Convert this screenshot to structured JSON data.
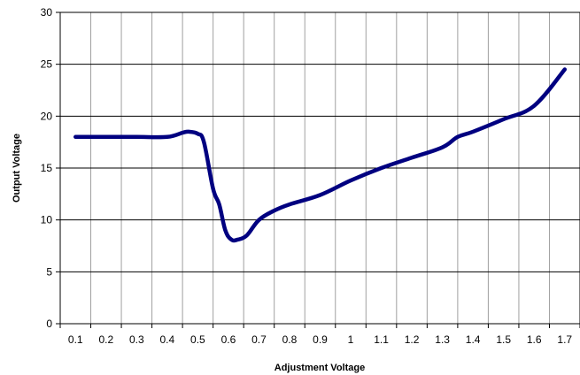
{
  "chart_data": {
    "type": "line",
    "title": "",
    "xlabel": "Adjustment Voltage",
    "ylabel": "Output Voltage",
    "x_ticks": [
      "0.1",
      "0.2",
      "0.3",
      "0.4",
      "0.5",
      "0.6",
      "0.7",
      "0.8",
      "0.9",
      "1",
      "1.1",
      "1.2",
      "1.3",
      "1.4",
      "1.5",
      "1.6",
      "1.7"
    ],
    "y_ticks": [
      "0",
      "5",
      "10",
      "15",
      "20",
      "25",
      "30"
    ],
    "ylim": [
      0,
      30
    ],
    "grid": true,
    "legend": false,
    "series": [
      {
        "color": "#000080",
        "x": [
          0.1,
          0.2,
          0.3,
          0.4,
          0.45,
          0.47,
          0.5,
          0.52,
          0.55,
          0.57,
          0.59,
          0.61,
          0.63,
          0.66,
          0.7,
          0.75,
          0.8,
          0.9,
          1.0,
          1.1,
          1.2,
          1.3,
          1.35,
          1.4,
          1.5,
          1.6,
          1.7
        ],
        "y": [
          18.0,
          18.0,
          18.0,
          18.0,
          18.4,
          18.5,
          18.3,
          17.5,
          13.0,
          11.5,
          9.0,
          8.1,
          8.1,
          8.5,
          10.0,
          10.9,
          11.5,
          12.4,
          13.8,
          15.0,
          16.0,
          17.0,
          18.0,
          18.5,
          19.7,
          21.0,
          24.5
        ]
      }
    ]
  }
}
